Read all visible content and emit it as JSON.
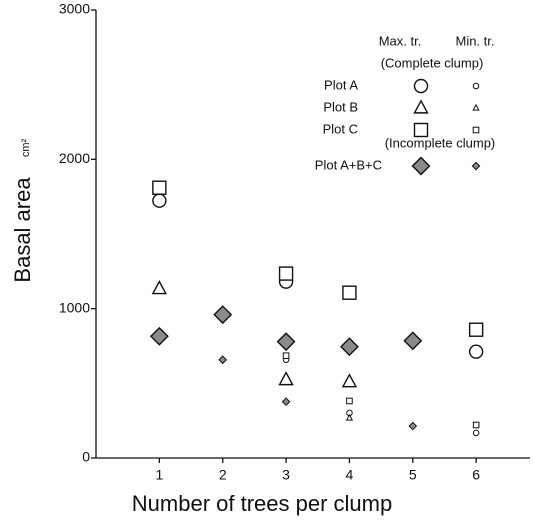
{
  "chart_data": {
    "type": "scatter",
    "xlabel": "Number of trees per clump",
    "ylabel": "Basal area",
    "yunit": "cm²",
    "xlim": [
      0,
      6.85
    ],
    "xticks": [
      1,
      2,
      3,
      4,
      5,
      6
    ],
    "ylim": [
      0,
      3000
    ],
    "yticks": [
      0,
      1000,
      2000,
      3000
    ],
    "legend": {
      "columns": [
        "Max. tr.",
        "Min. tr."
      ],
      "headings": [
        "(Complete clump)",
        "(Incomplete clump)"
      ]
    },
    "series": [
      {
        "name": "Plot A",
        "marker": "circle",
        "color": "#ffffff",
        "max": {
          "x": [
            1,
            3,
            6
          ],
          "values": [
            1723,
            1181,
            712
          ]
        },
        "min": {
          "x": [
            3,
            4,
            6
          ],
          "values": [
            658,
            302,
            168
          ]
        }
      },
      {
        "name": "Plot B",
        "marker": "triangle",
        "color": "#ffffff",
        "max": {
          "x": [
            1,
            3,
            4
          ],
          "values": [
            1134,
            524,
            510
          ]
        },
        "min": {
          "x": [
            4
          ],
          "values": [
            268
          ]
        }
      },
      {
        "name": "Plot C",
        "marker": "square",
        "color": "#ffffff",
        "max": {
          "x": [
            1,
            3,
            4,
            6
          ],
          "values": [
            1810,
            1235,
            1107,
            859
          ]
        },
        "min": {
          "x": [
            3,
            4,
            6
          ],
          "values": [
            685,
            382,
            221
          ]
        }
      },
      {
        "name": "Plot A+B+C",
        "marker": "diamond",
        "color": "#8a8a8a",
        "max": {
          "x": [
            1,
            2,
            3,
            4,
            5
          ],
          "values": [
            815,
            960,
            779,
            745,
            785
          ]
        },
        "min": {
          "x": [
            2,
            3,
            5
          ],
          "values": [
            658,
            377,
            214
          ]
        }
      }
    ]
  }
}
